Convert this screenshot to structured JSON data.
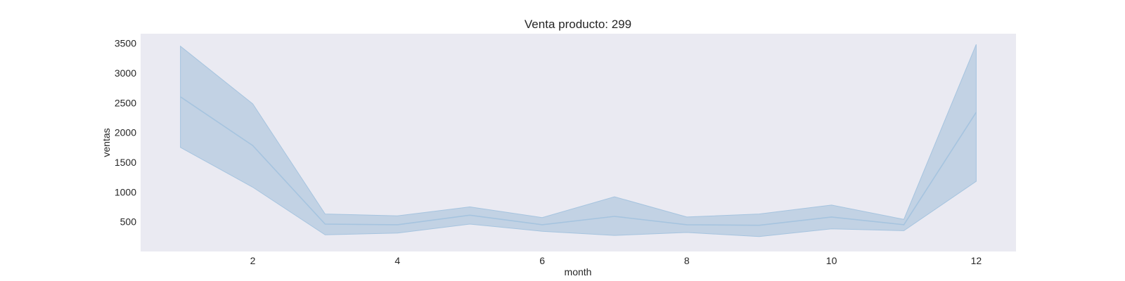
{
  "chart_data": {
    "type": "line",
    "title": "Venta producto: 299",
    "xlabel": "month",
    "ylabel": "ventas",
    "xlim": [
      0.45,
      12.55
    ],
    "ylim": [
      0,
      3660
    ],
    "xticks": [
      2,
      4,
      6,
      8,
      10,
      12
    ],
    "yticks": [
      500,
      1000,
      1500,
      2000,
      2500,
      3000,
      3500
    ],
    "grid": false,
    "colors": {
      "plot_background": "#eaeaf2",
      "line": "#a6c4df",
      "band": "#c2d2e4",
      "band_edge": "#a6c4df"
    },
    "series": [
      {
        "x": [
          1,
          2,
          3,
          4,
          5,
          6,
          7,
          8,
          9,
          10,
          11,
          12
        ],
        "y": [
          2600,
          1780,
          460,
          450,
          610,
          450,
          590,
          450,
          440,
          580,
          450,
          2340
        ],
        "ci_lower": [
          1750,
          1080,
          280,
          310,
          460,
          340,
          270,
          320,
          250,
          380,
          350,
          1180
        ],
        "ci_upper": [
          3450,
          2480,
          630,
          600,
          750,
          570,
          920,
          580,
          630,
          780,
          540,
          3480
        ]
      }
    ]
  }
}
